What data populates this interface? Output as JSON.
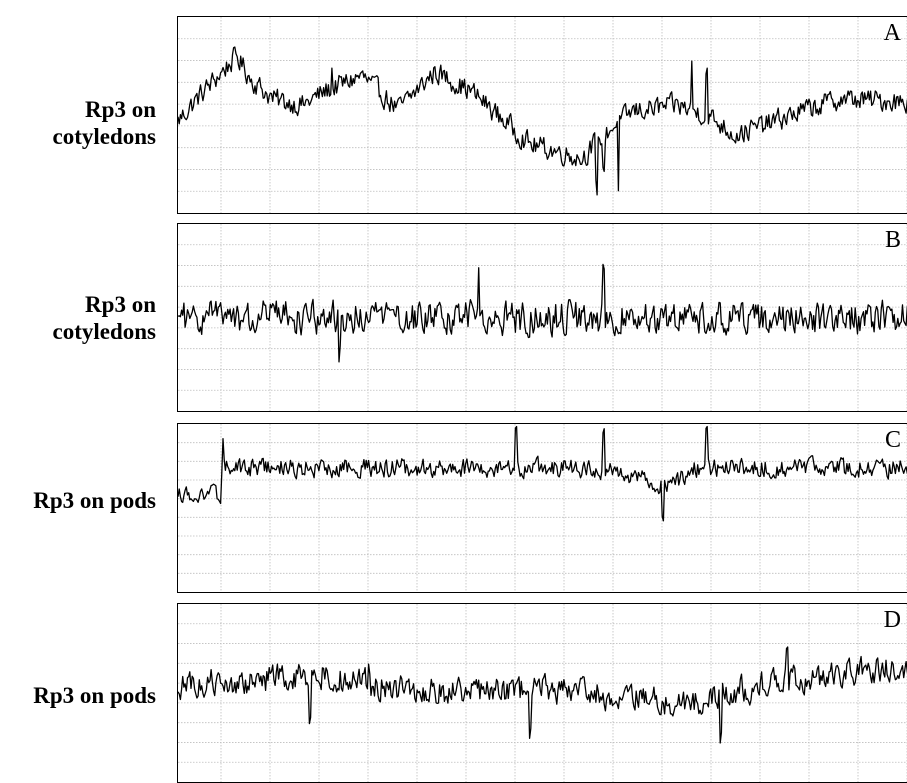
{
  "figure": {
    "panels": [
      {
        "letter": "A",
        "label_lines": [
          "Rp3 on",
          "cotyledons"
        ]
      },
      {
        "letter": "B",
        "label_lines": [
          "Rp3 on",
          "cotyledons"
        ]
      },
      {
        "letter": "C",
        "label_lines": [
          "Rp3 on pods"
        ]
      },
      {
        "letter": "D",
        "label_lines": [
          "Rp3 on pods"
        ]
      }
    ]
  },
  "chart_data": [
    {
      "type": "line",
      "panel": "A",
      "x_range": [
        0,
        1
      ],
      "y_range": [
        0,
        1
      ],
      "grid": true,
      "series": [
        {
          "profile": [
            [
              0,
              0.47
            ],
            [
              0.03,
              0.6
            ],
            [
              0.08,
              0.8
            ],
            [
              0.1,
              0.68
            ],
            [
              0.13,
              0.58
            ],
            [
              0.17,
              0.55
            ],
            [
              0.2,
              0.62
            ],
            [
              0.25,
              0.7
            ],
            [
              0.3,
              0.53
            ],
            [
              0.35,
              0.72
            ],
            [
              0.4,
              0.62
            ],
            [
              0.43,
              0.52
            ],
            [
              0.48,
              0.35
            ],
            [
              0.55,
              0.28
            ],
            [
              0.58,
              0.4
            ],
            [
              0.62,
              0.52
            ],
            [
              0.68,
              0.55
            ],
            [
              0.72,
              0.5
            ],
            [
              0.76,
              0.4
            ],
            [
              0.8,
              0.45
            ],
            [
              0.85,
              0.52
            ],
            [
              0.9,
              0.58
            ],
            [
              1,
              0.57
            ]
          ],
          "noise": 0.05,
          "spikes": [
            [
              0.57,
              -0.25
            ],
            [
              0.58,
              -0.2
            ],
            [
              0.6,
              -0.15
            ],
            [
              0.6,
              -0.16
            ],
            [
              0.7,
              0.25
            ],
            [
              0.72,
              0.22
            ],
            [
              0.21,
              0.1
            ]
          ]
        }
      ]
    },
    {
      "type": "line",
      "panel": "B",
      "x_range": [
        0,
        1
      ],
      "y_range": [
        0,
        1
      ],
      "grid": true,
      "series": [
        {
          "profile": [
            [
              0,
              0.5
            ],
            [
              1,
              0.5
            ]
          ],
          "noise": 0.08,
          "spikes": [
            [
              0.22,
              -0.18
            ],
            [
              0.41,
              0.18
            ],
            [
              0.58,
              0.2
            ]
          ]
        }
      ]
    },
    {
      "type": "line",
      "panel": "C",
      "x_range": [
        0,
        1
      ],
      "y_range": [
        0,
        1
      ],
      "grid": true,
      "series": [
        {
          "profile": [
            [
              0,
              0.58
            ],
            [
              0.06,
              0.58
            ],
            [
              0.061,
              0.74
            ],
            [
              0.5,
              0.74
            ],
            [
              0.6,
              0.72
            ],
            [
              0.66,
              0.62
            ],
            [
              0.68,
              0.66
            ],
            [
              0.7,
              0.74
            ],
            [
              1,
              0.74
            ]
          ],
          "noise": 0.05,
          "spikes": [
            [
              0.06,
              0.15
            ],
            [
              0.46,
              0.2
            ],
            [
              0.58,
              0.2
            ],
            [
              0.66,
              -0.2
            ],
            [
              0.72,
              0.2
            ]
          ]
        }
      ]
    },
    {
      "type": "line",
      "panel": "D",
      "x_range": [
        0,
        1
      ],
      "y_range": [
        0,
        1
      ],
      "grid": true,
      "series": [
        {
          "profile": [
            [
              0,
              0.55
            ],
            [
              0.1,
              0.57
            ],
            [
              0.2,
              0.6
            ],
            [
              0.3,
              0.52
            ],
            [
              0.4,
              0.5
            ],
            [
              0.5,
              0.52
            ],
            [
              0.6,
              0.48
            ],
            [
              0.7,
              0.44
            ],
            [
              0.75,
              0.5
            ],
            [
              0.85,
              0.58
            ],
            [
              0.95,
              0.63
            ],
            [
              1,
              0.62
            ]
          ],
          "noise": 0.07,
          "spikes": [
            [
              0.26,
              0.12
            ],
            [
              0.18,
              -0.25
            ],
            [
              0.48,
              -0.2
            ],
            [
              0.74,
              -0.25
            ],
            [
              0.83,
              0.2
            ]
          ]
        }
      ]
    }
  ]
}
